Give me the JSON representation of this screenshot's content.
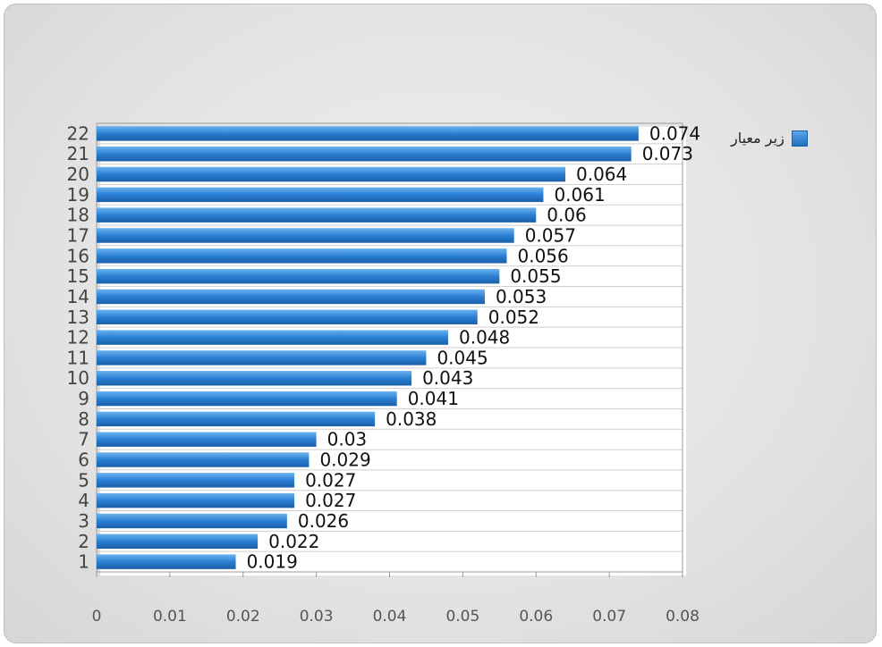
{
  "chart_data": {
    "type": "bar",
    "orientation": "horizontal",
    "categories": [
      "1",
      "2",
      "3",
      "4",
      "5",
      "6",
      "7",
      "8",
      "9",
      "10",
      "11",
      "12",
      "13",
      "14",
      "15",
      "16",
      "17",
      "18",
      "19",
      "20",
      "21",
      "22"
    ],
    "series": [
      {
        "name": "زیر معیار",
        "color": "#2b7fd4",
        "values": [
          0.019,
          0.022,
          0.026,
          0.027,
          0.027,
          0.029,
          0.03,
          0.038,
          0.041,
          0.043,
          0.045,
          0.048,
          0.052,
          0.053,
          0.055,
          0.056,
          0.057,
          0.06,
          0.061,
          0.064,
          0.073,
          0.074
        ],
        "value_labels": [
          "0.019",
          "0.022",
          "0.026",
          "0.027",
          "0.027",
          "0.029",
          "0.03",
          "0.038",
          "0.041",
          "0.043",
          "0.045",
          "0.048",
          "0.052",
          "0.053",
          "0.055",
          "0.056",
          "0.057",
          "0.06",
          "0.061",
          "0.064",
          "0.073",
          "0.074"
        ]
      }
    ],
    "xlim": [
      0,
      0.08
    ],
    "x_ticks": [
      "0",
      "0.01",
      "0.02",
      "0.03",
      "0.04",
      "0.05",
      "0.06",
      "0.07",
      "0.08"
    ],
    "grid": true,
    "legend_position": "top-right"
  }
}
